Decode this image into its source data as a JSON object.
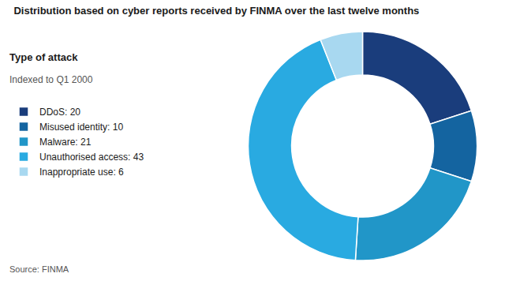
{
  "chart_data": {
    "type": "donut",
    "title": "Distribution based on cyber reports received by FINMA over the last twelve months",
    "legend_title": "Type of attack",
    "subtitle": "Indexed to Q1 2000",
    "source": "Source: FINMA",
    "categories": [
      "DDoS: 20",
      "Misused identity: 10",
      "Malware: 21",
      "Unauthorised access: 43",
      "Inappropriate use: 6"
    ],
    "values": [
      20,
      10,
      21,
      43,
      6
    ],
    "colors": [
      "#1a3d7c",
      "#1464a0",
      "#2196c8",
      "#29aae1",
      "#a8d8f0"
    ],
    "legend": "left"
  }
}
